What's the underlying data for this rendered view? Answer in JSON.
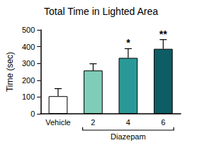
{
  "chart_data": {
    "type": "bar",
    "title": "Total Time in Lighted Area",
    "y_label": "Time (sec)",
    "categories": [
      "Vehicle",
      "2",
      "4",
      "6"
    ],
    "values": [
      105,
      258,
      333,
      387
    ],
    "errors": [
      45,
      40,
      55,
      55
    ],
    "colors": [
      "#ffffff",
      "#7fcdb9",
      "#2b9898",
      "#0e5c64"
    ],
    "ylim": [
      0,
      500
    ],
    "yticks": [
      0,
      100,
      200,
      300,
      400,
      500
    ],
    "grid": false,
    "annotations": [
      {
        "category": "4",
        "text": "*"
      },
      {
        "category": "6",
        "text": "**"
      }
    ],
    "group": {
      "label": "Diazepam",
      "categories": [
        "2",
        "4",
        "6"
      ]
    }
  }
}
